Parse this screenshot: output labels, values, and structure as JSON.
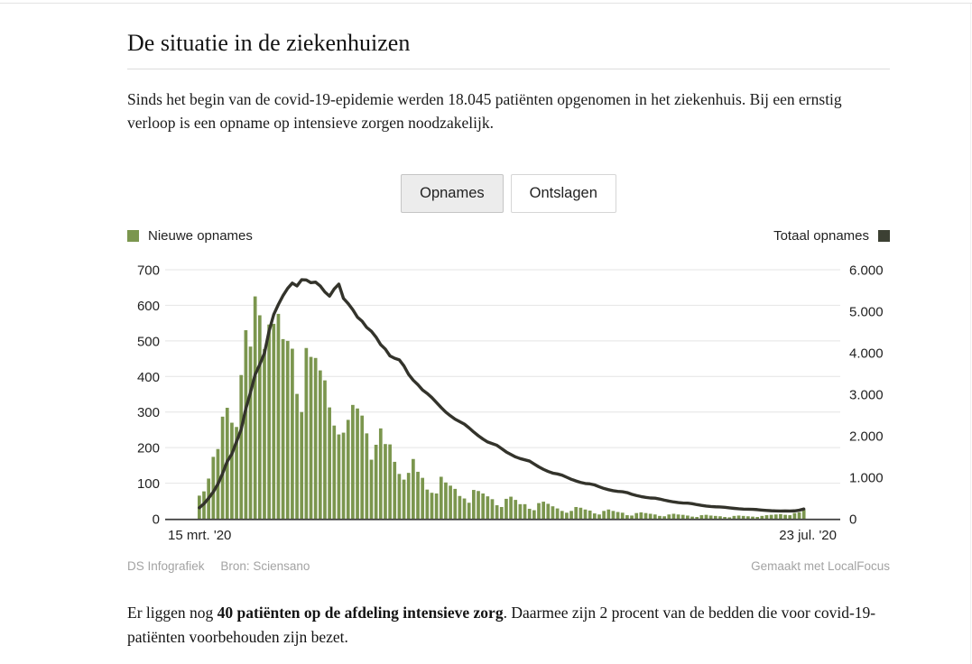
{
  "header": {
    "title": "De situatie in de ziekenhuizen",
    "intro": "Sinds het begin van de covid-19-epidemie werden 18.045 patiënten opgenomen in het ziekenhuis. Bij een ernstig verloop is een opname op intensieve zorgen noodzakelijk."
  },
  "toggle": {
    "options": [
      {
        "label": "Opnames",
        "selected": true
      },
      {
        "label": "Ontslagen",
        "selected": false
      }
    ]
  },
  "chart_data": {
    "type": "bar",
    "note": "dual-axis: daily bars on left axis, cumulative-style line on right axis",
    "x_start_label": "15 mrt. '20",
    "x_end_label": "23 jul. '20",
    "n_points": 131,
    "grid": true,
    "left_axis": {
      "lim": [
        0,
        700
      ],
      "ticks": [
        0,
        100,
        200,
        300,
        400,
        500,
        600,
        700
      ]
    },
    "right_axis": {
      "lim": [
        0,
        6000
      ],
      "ticks": [
        0,
        1000,
        2000,
        3000,
        4000,
        5000,
        6000
      ],
      "tick_labels": [
        "0",
        "1.000",
        "2.000",
        "3.000",
        "4.000",
        "5.000",
        "6.000"
      ]
    },
    "colors": {
      "bar": "#7b964e",
      "line": "#33332b",
      "legend_dark": "#3c4033",
      "grid": "#e4e4e4",
      "axis": "#3c3c3c"
    },
    "series": [
      {
        "name": "Nieuwe opnames",
        "type": "bar",
        "axis": "left",
        "values": [
          65,
          77,
          113,
          174,
          196,
          287,
          312,
          270,
          258,
          404,
          530,
          484,
          625,
          572,
          477,
          546,
          548,
          576,
          505,
          500,
          478,
          351,
          300,
          480,
          455,
          452,
          417,
          389,
          313,
          262,
          237,
          242,
          278,
          320,
          310,
          290,
          240,
          166,
          208,
          254,
          210,
          209,
          160,
          126,
          110,
          129,
          168,
          132,
          115,
          82,
          73,
          71,
          118,
          102,
          93,
          84,
          64,
          57,
          45,
          81,
          78,
          71,
          63,
          55,
          38,
          33,
          56,
          62,
          53,
          41,
          41,
          28,
          24,
          44,
          48,
          42,
          35,
          29,
          22,
          17,
          22,
          33,
          31,
          26,
          23,
          15,
          12,
          22,
          26,
          22,
          19,
          17,
          10,
          9,
          16,
          18,
          16,
          14,
          12,
          8,
          7,
          12,
          14,
          12,
          11,
          9,
          6,
          5,
          10,
          11,
          9,
          8,
          7,
          5,
          4,
          8,
          9,
          8,
          7,
          6,
          5,
          8,
          10,
          11,
          12,
          13,
          11,
          10,
          16,
          18,
          25
        ]
      },
      {
        "name": "Totaal opnames",
        "type": "line",
        "axis": "right",
        "values": [
          265,
          361,
          496,
          647,
          837,
          1089,
          1380,
          1561,
          1859,
          2152,
          2652,
          3042,
          3472,
          3717,
          3988,
          4524,
          4920,
          5163,
          5376,
          5552,
          5678,
          5610,
          5759,
          5754,
          5688,
          5701,
          5610,
          5465,
          5364,
          5536,
          5653,
          5309,
          5186,
          5038,
          4858,
          4761,
          4609,
          4518,
          4377,
          4195,
          4088,
          3924,
          3866,
          3830,
          3684,
          3480,
          3338,
          3231,
          3104,
          3020,
          2920,
          2800,
          2680,
          2570,
          2480,
          2400,
          2340,
          2280,
          2190,
          2090,
          2000,
          1920,
          1850,
          1810,
          1770,
          1690,
          1610,
          1550,
          1490,
          1450,
          1420,
          1390,
          1320,
          1250,
          1190,
          1140,
          1100,
          1080,
          1050,
          1000,
          950,
          910,
          875,
          850,
          840,
          815,
          770,
          730,
          700,
          675,
          660,
          650,
          630,
          590,
          560,
          535,
          515,
          500,
          495,
          475,
          448,
          425,
          405,
          390,
          380,
          377,
          362,
          340,
          322,
          307,
          295,
          288,
          285,
          276,
          262,
          250,
          240,
          233,
          229,
          227,
          220,
          209,
          200,
          193,
          189,
          187,
          188,
          186,
          190,
          205,
          235
        ]
      }
    ]
  },
  "credits": {
    "left": [
      "DS Infografiek",
      "Bron: Sciensano"
    ],
    "right": "Gemaakt met LocalFocus"
  },
  "footer": {
    "text_before": "Er liggen nog ",
    "bold": "40 patiënten op de afdeling intensieve zorg",
    "text_after": ". Daarmee zijn 2 procent van de bedden die voor covid-19-patiënten voorbehouden zijn bezet."
  }
}
